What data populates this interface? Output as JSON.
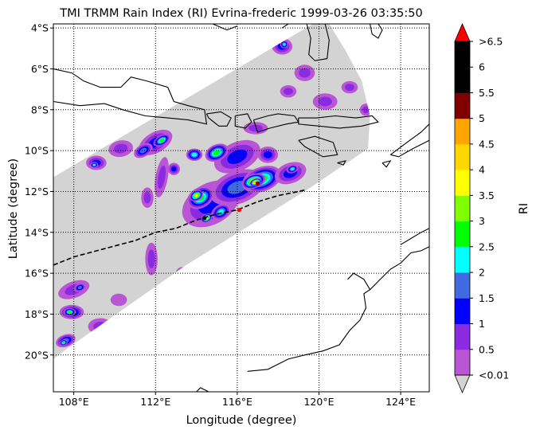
{
  "chart_data": {
    "type": "heatmap",
    "title": "TMI TRMM Rain Index (RI) Evrina-frederic 1999-03-26 03:35:50",
    "xlabel": "Longitude (degree)",
    "ylabel": "Latitude (degree)",
    "xlim": [
      107.0,
      125.4
    ],
    "ylim": [
      -21.8,
      -3.8
    ],
    "x_ticks": [
      {
        "value": 108,
        "label": "108°E"
      },
      {
        "value": 112,
        "label": "112°E"
      },
      {
        "value": 116,
        "label": "116°E"
      },
      {
        "value": 120,
        "label": "120°E"
      },
      {
        "value": 124,
        "label": "124°E"
      }
    ],
    "y_ticks": [
      {
        "value": -4,
        "label": "4°S"
      },
      {
        "value": -6,
        "label": "6°S"
      },
      {
        "value": -8,
        "label": "8°S"
      },
      {
        "value": -10,
        "label": "10°S"
      },
      {
        "value": -12,
        "label": "12°S"
      },
      {
        "value": -14,
        "label": "14°S"
      },
      {
        "value": -16,
        "label": "16°S"
      },
      {
        "value": -18,
        "label": "18°S"
      },
      {
        "value": -20,
        "label": "20°S"
      }
    ],
    "grid": true,
    "grid_style": "dotted",
    "swath_color": "#d3d3d3",
    "colorbar": {
      "label": "RI",
      "bounds": [
        0.01,
        0.5,
        1,
        1.5,
        2,
        2.5,
        3,
        3.5,
        4,
        4.5,
        5,
        5.5,
        6,
        6.5
      ],
      "tick_labels": [
        "<0.01",
        "0.5",
        "1",
        "1.5",
        "2",
        "2.5",
        "3",
        "3.5",
        "4",
        "4.5",
        "5",
        "5.5",
        "6",
        ">6.5"
      ],
      "colors": [
        "#ba55d3",
        "#8a2be2",
        "#0000ff",
        "#4169e1",
        "#00ffff",
        "#00ff00",
        "#7fff00",
        "#ffff00",
        "#ffd700",
        "#ffa500",
        "#800000",
        "#000000",
        "#000000"
      ],
      "under_color": "#d3d3d3",
      "over_color": "#ff0000"
    },
    "storm_track": [
      [
        107.0,
        -15.6
      ],
      [
        108.0,
        -15.2
      ],
      [
        109.5,
        -14.8
      ],
      [
        111.0,
        -14.4
      ],
      [
        112.0,
        -14.0
      ],
      [
        113.0,
        -13.8
      ],
      [
        114.0,
        -13.4
      ],
      [
        115.0,
        -13.1
      ],
      [
        116.0,
        -12.9
      ],
      [
        117.0,
        -12.5
      ],
      [
        118.0,
        -12.2
      ],
      [
        119.0,
        -12.0
      ],
      [
        119.4,
        -11.9
      ]
    ],
    "storm_markers": [
      {
        "lon": 114.4,
        "lat": -13.3,
        "color": "#000000"
      },
      {
        "lon": 116.1,
        "lat": -12.9,
        "color": "#ff0000"
      },
      {
        "lon": 117.0,
        "lat": -11.6,
        "color": "#800000"
      }
    ],
    "rain_cells": [
      {
        "lon": 114.7,
        "lat": -12.6,
        "rx": 1.5,
        "ry": 1.0,
        "rot": -30,
        "ri": 1.6
      },
      {
        "lon": 116.0,
        "lat": -11.8,
        "rx": 1.4,
        "ry": 0.8,
        "rot": -20,
        "ri": 2.2
      },
      {
        "lon": 117.2,
        "lat": -11.4,
        "rx": 1.0,
        "ry": 0.6,
        "rot": -20,
        "ri": 3.0
      },
      {
        "lon": 116.8,
        "lat": -11.5,
        "rx": 0.6,
        "ry": 0.35,
        "rot": -20,
        "ri": 4.2
      },
      {
        "lon": 116.9,
        "lat": -11.55,
        "rx": 0.3,
        "ry": 0.18,
        "rot": -20,
        "ri": 5.2
      },
      {
        "lon": 114.2,
        "lat": -12.3,
        "rx": 0.7,
        "ry": 0.5,
        "rot": -30,
        "ri": 3.2
      },
      {
        "lon": 114.0,
        "lat": -12.2,
        "rx": 0.35,
        "ry": 0.25,
        "rot": -30,
        "ri": 4.1
      },
      {
        "lon": 115.2,
        "lat": -13.0,
        "rx": 0.5,
        "ry": 0.35,
        "rot": -30,
        "ri": 2.6
      },
      {
        "lon": 114.5,
        "lat": -13.3,
        "rx": 0.3,
        "ry": 0.2,
        "rot": -30,
        "ri": 3.8
      },
      {
        "lon": 116.0,
        "lat": -10.3,
        "rx": 1.2,
        "ry": 0.7,
        "rot": -25,
        "ri": 1.6
      },
      {
        "lon": 115.0,
        "lat": -10.1,
        "rx": 0.6,
        "ry": 0.4,
        "rot": -25,
        "ri": 2.8
      },
      {
        "lon": 117.5,
        "lat": -10.2,
        "rx": 0.5,
        "ry": 0.4,
        "rot": 0,
        "ri": 1.6
      },
      {
        "lon": 118.6,
        "lat": -11.1,
        "rx": 0.8,
        "ry": 0.5,
        "rot": -20,
        "ri": 1.4
      },
      {
        "lon": 118.7,
        "lat": -10.9,
        "rx": 0.3,
        "ry": 0.2,
        "rot": -20,
        "ri": 2.3
      },
      {
        "lon": 113.9,
        "lat": -10.2,
        "rx": 0.4,
        "ry": 0.3,
        "rot": 0,
        "ri": 2.6
      },
      {
        "lon": 112.0,
        "lat": -9.6,
        "rx": 0.9,
        "ry": 0.5,
        "rot": -30,
        "ri": 1.3
      },
      {
        "lon": 112.3,
        "lat": -9.5,
        "rx": 0.45,
        "ry": 0.25,
        "rot": -30,
        "ri": 3.2
      },
      {
        "lon": 111.4,
        "lat": -10.0,
        "rx": 0.5,
        "ry": 0.3,
        "rot": -30,
        "ri": 2.1
      },
      {
        "lon": 110.3,
        "lat": -9.9,
        "rx": 0.6,
        "ry": 0.4,
        "rot": -10,
        "ri": 1.1
      },
      {
        "lon": 109.1,
        "lat": -10.6,
        "rx": 0.5,
        "ry": 0.35,
        "rot": 0,
        "ri": 1.3
      },
      {
        "lon": 109.0,
        "lat": -10.7,
        "rx": 0.2,
        "ry": 0.15,
        "rot": 0,
        "ri": 2.4
      },
      {
        "lon": 112.3,
        "lat": -11.3,
        "rx": 0.3,
        "ry": 1.0,
        "rot": 10,
        "ri": 1.1
      },
      {
        "lon": 111.6,
        "lat": -12.3,
        "rx": 0.3,
        "ry": 0.5,
        "rot": 0,
        "ri": 1.0
      },
      {
        "lon": 112.9,
        "lat": -10.9,
        "rx": 0.3,
        "ry": 0.3,
        "rot": 0,
        "ri": 1.3
      },
      {
        "lon": 111.8,
        "lat": -15.3,
        "rx": 0.3,
        "ry": 0.8,
        "rot": 0,
        "ri": 1.0
      },
      {
        "lon": 113.3,
        "lat": -16.0,
        "rx": 0.3,
        "ry": 0.3,
        "rot": 0,
        "ri": 0.7
      },
      {
        "lon": 108.0,
        "lat": -16.8,
        "rx": 0.8,
        "ry": 0.4,
        "rot": -20,
        "ri": 1.2
      },
      {
        "lon": 108.3,
        "lat": -16.7,
        "rx": 0.3,
        "ry": 0.2,
        "rot": -20,
        "ri": 2.2
      },
      {
        "lon": 107.9,
        "lat": -17.9,
        "rx": 0.6,
        "ry": 0.35,
        "rot": 0,
        "ri": 2.0
      },
      {
        "lon": 107.8,
        "lat": -17.9,
        "rx": 0.3,
        "ry": 0.2,
        "rot": 0,
        "ri": 3.2
      },
      {
        "lon": 107.6,
        "lat": -19.3,
        "rx": 0.5,
        "ry": 0.3,
        "rot": -20,
        "ri": 1.8
      },
      {
        "lon": 107.5,
        "lat": -19.4,
        "rx": 0.2,
        "ry": 0.15,
        "rot": -20,
        "ri": 3.0
      },
      {
        "lon": 109.3,
        "lat": -18.6,
        "rx": 0.6,
        "ry": 0.4,
        "rot": 0,
        "ri": 0.8
      },
      {
        "lon": 110.2,
        "lat": -17.3,
        "rx": 0.4,
        "ry": 0.3,
        "rot": 0,
        "ri": 0.7
      },
      {
        "lon": 118.2,
        "lat": -4.9,
        "rx": 0.5,
        "ry": 0.4,
        "rot": 0,
        "ri": 1.3
      },
      {
        "lon": 118.3,
        "lat": -4.8,
        "rx": 0.2,
        "ry": 0.2,
        "rot": 0,
        "ri": 2.4
      },
      {
        "lon": 119.3,
        "lat": -6.2,
        "rx": 0.5,
        "ry": 0.4,
        "rot": 0,
        "ri": 1.0
      },
      {
        "lon": 120.3,
        "lat": -7.6,
        "rx": 0.6,
        "ry": 0.4,
        "rot": 0,
        "ri": 1.1
      },
      {
        "lon": 118.5,
        "lat": -7.1,
        "rx": 0.4,
        "ry": 0.3,
        "rot": 0,
        "ri": 0.8
      },
      {
        "lon": 121.5,
        "lat": -6.9,
        "rx": 0.4,
        "ry": 0.3,
        "rot": 0,
        "ri": 0.9
      },
      {
        "lon": 116.9,
        "lat": -8.9,
        "rx": 0.6,
        "ry": 0.3,
        "rot": 0,
        "ri": 0.9
      },
      {
        "lon": 122.3,
        "lat": -8.0,
        "rx": 0.3,
        "ry": 0.3,
        "rot": 0,
        "ri": 1.0
      }
    ]
  }
}
